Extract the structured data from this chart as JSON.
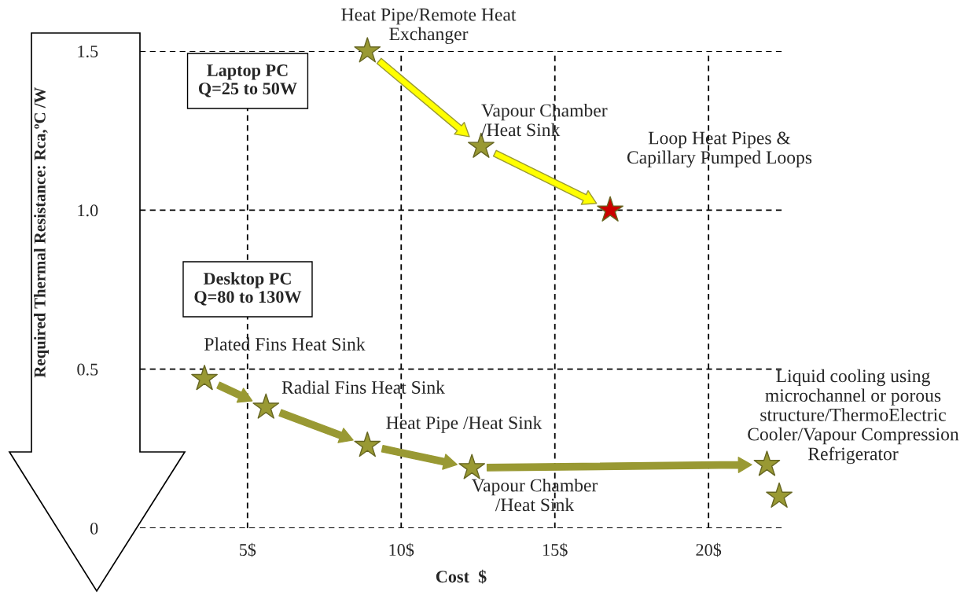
{
  "chart_data": {
    "type": "scatter",
    "xlabel": "Cost  $",
    "ylabel": "Required Thermal Resistance: Rca,ºC /W",
    "xlim": [
      1.5,
      22.4
    ],
    "ylim": [
      0,
      1.5
    ],
    "xticks": [
      {
        "value": 5,
        "label": "5$"
      },
      {
        "value": 10,
        "label": "10$"
      },
      {
        "value": 15,
        "label": "15$"
      },
      {
        "value": 20,
        "label": "20$"
      }
    ],
    "yticks": [
      0,
      0.5,
      {
        "value": 1,
        "label": "1.0"
      },
      1.5
    ],
    "grid": true,
    "marker": "star",
    "series": [
      {
        "x": [
          8.9,
          12.6,
          16.8
        ],
        "values": [
          1.5,
          1.2,
          1.0
        ],
        "colors": [
          "#999933",
          "#999933",
          "#cc0000"
        ]
      },
      {
        "x": [
          3.6,
          5.6,
          8.9,
          12.3,
          21.9,
          22.3
        ],
        "values": [
          0.47,
          0.38,
          0.26,
          0.19,
          0.2,
          0.1
        ],
        "color": "#999933"
      }
    ],
    "annotations": [
      "Laptop PC\nQ=25 to 50W",
      "Desktop PC\nQ=80 to 130W",
      "Heat Pipe/Remote Heat\nExchanger",
      "Vapour Chamber\n/Heat Sink",
      "Loop Heat Pipes &\nCapillary Pumped Loops",
      "Plated Fins Heat Sink",
      "Radial Fins Heat Sink",
      "Heat Pipe /Heat Sink",
      "Vapour Chamber\n/Heat Sink",
      "Liquid cooling using\nmicrochannel or porous\nstructure/ThermoElectric\nCooler/Vapour Compression\nRefrigerator"
    ]
  }
}
